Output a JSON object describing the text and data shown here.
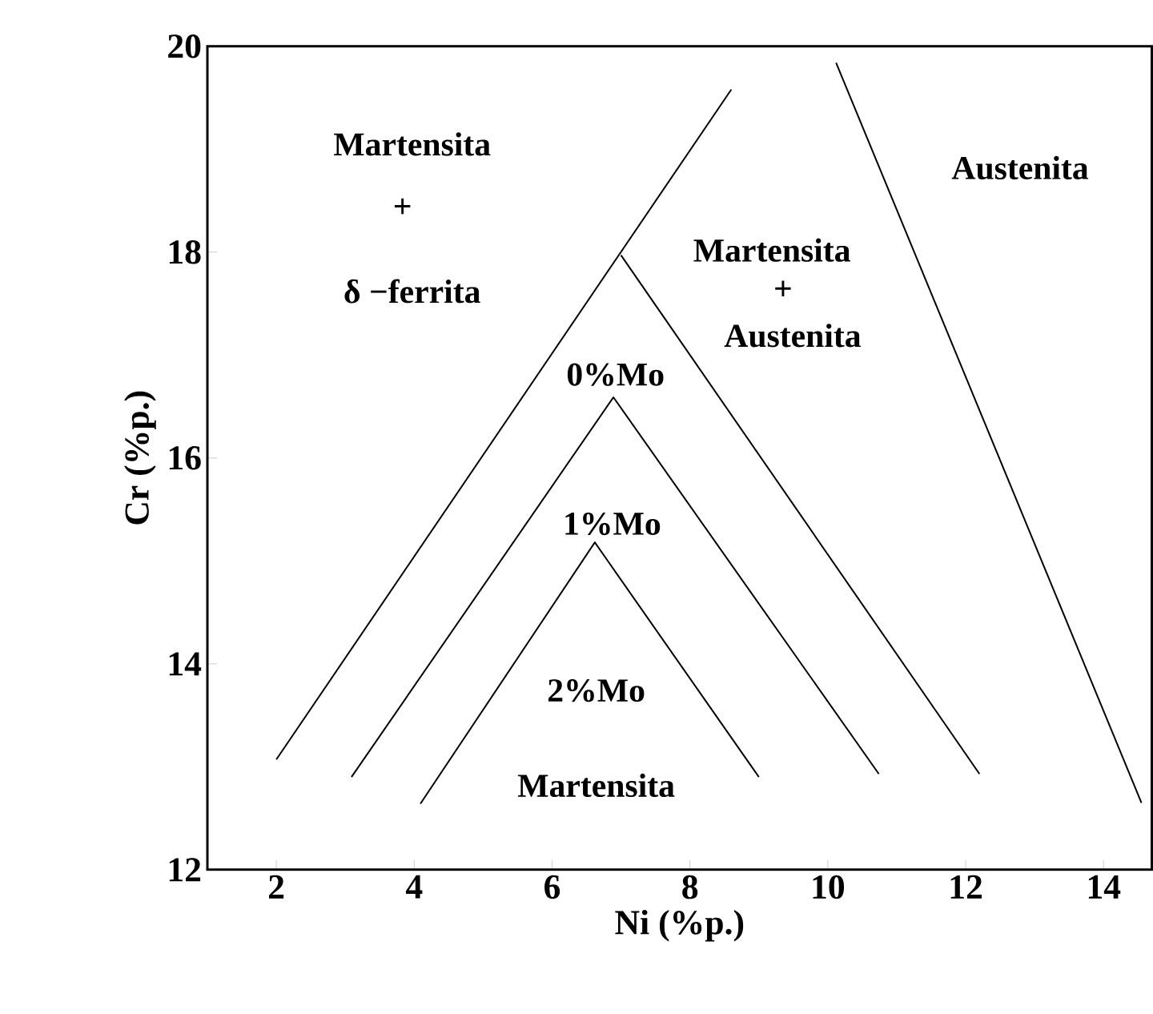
{
  "chart_data": {
    "type": "line",
    "xlabel": "Ni (%p.)",
    "ylabel": "Cr (%p.)",
    "xlim": [
      1,
      14.7
    ],
    "ylim": [
      12,
      20
    ],
    "xticks": [
      2,
      4,
      6,
      8,
      10,
      12,
      14
    ],
    "yticks": [
      12,
      14,
      16,
      18,
      20
    ],
    "marker": "none",
    "line_style": "solid",
    "series": [
      {
        "color": "#000000",
        "x": [
          2.0,
          8.6
        ],
        "values": [
          13.07,
          19.58
        ]
      },
      {
        "color": "#000000",
        "x": [
          7.0,
          12.2
        ],
        "values": [
          17.97,
          12.93
        ]
      },
      {
        "color": "#000000",
        "x": [
          3.09,
          6.89,
          10.74
        ],
        "values": [
          12.9,
          16.59,
          12.93
        ]
      },
      {
        "color": "#000000",
        "x": [
          4.09,
          6.62,
          9.0
        ],
        "values": [
          12.64,
          15.18,
          12.9
        ]
      },
      {
        "color": "#000000",
        "x": [
          10.12,
          14.55
        ],
        "values": [
          19.84,
          12.65
        ]
      }
    ],
    "annotations": [
      "Martensita",
      "+",
      "δ −ferrita",
      "Martensita",
      "+",
      "Austenita",
      "Austenita",
      "0%Mo",
      "1%Mo",
      "2%Mo",
      "Martensita"
    ]
  }
}
